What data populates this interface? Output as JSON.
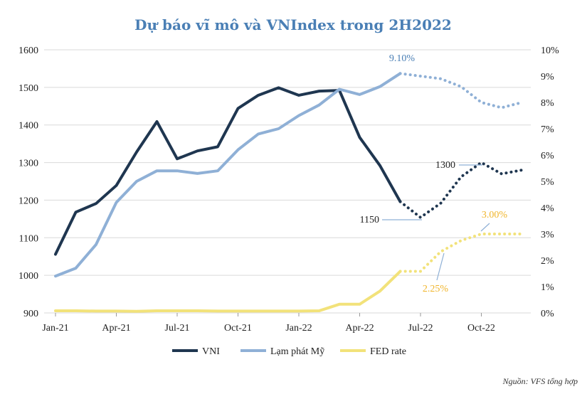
{
  "chart_data": {
    "type": "line",
    "title": "Dự báo vĩ mô và VNIndex trong 2H2022",
    "source": "Nguồn: VFS tổng hợp",
    "x_tick_labels": [
      "Jan-21",
      "Apr-21",
      "Jul-21",
      "Oct-21",
      "Jan-22",
      "Apr-22",
      "Jul-22",
      "Oct-22"
    ],
    "y_left": {
      "ticks": [
        900,
        1000,
        1100,
        1200,
        1300,
        1400,
        1500,
        1600
      ],
      "range": [
        900,
        1600
      ]
    },
    "y_right": {
      "ticks": [
        "0%",
        "1%",
        "2%",
        "3%",
        "4%",
        "5%",
        "6%",
        "7%",
        "8%",
        "9%",
        "10%"
      ],
      "range": [
        0,
        10
      ]
    },
    "grid": true,
    "legend_position": "bottom",
    "colors": {
      "vni": "#1f3650",
      "inflation": "#8fb0d6",
      "fed": "#f2e27a",
      "title": "#4a7fb5",
      "fed_label": "#f0b429",
      "grid": "#d9d9d9"
    },
    "series": [
      {
        "name": "VNI",
        "key": "vni",
        "axis": "left",
        "values": [
          1056,
          1168,
          1191,
          1239,
          1328,
          1409,
          1310,
          1331,
          1342,
          1444,
          1479,
          1499,
          1479,
          1490,
          1492,
          1367,
          1292,
          1196
        ],
        "forecast": [
          1196,
          1154,
          1192,
          1262,
          1300,
          1270,
          1280
        ]
      },
      {
        "name": "Lạm phát Mỹ",
        "key": "inflation",
        "axis": "right",
        "values": [
          1.4,
          1.7,
          2.6,
          4.2,
          5.0,
          5.4,
          5.4,
          5.3,
          5.4,
          6.2,
          6.8,
          7.0,
          7.5,
          7.9,
          8.5,
          8.3,
          8.6,
          9.1
        ],
        "forecast": [
          9.1,
          9.0,
          8.9,
          8.6,
          8.0,
          7.8,
          8.0
        ]
      },
      {
        "name": "FED rate",
        "key": "fed",
        "axis": "right",
        "values": [
          0.08,
          0.08,
          0.07,
          0.07,
          0.06,
          0.08,
          0.08,
          0.08,
          0.07,
          0.07,
          0.07,
          0.07,
          0.07,
          0.08,
          0.33,
          0.33,
          0.83,
          1.58
        ],
        "forecast": [
          1.58,
          1.58,
          2.33,
          2.75,
          3.0,
          3.0,
          3.0
        ]
      }
    ],
    "annotations": [
      {
        "text": "9.10%",
        "series": "inflation"
      },
      {
        "text": "1300",
        "series": "vni"
      },
      {
        "text": "1150",
        "series": "vni"
      },
      {
        "text": "3.00%",
        "series": "fed"
      },
      {
        "text": "2.25%",
        "series": "fed"
      }
    ]
  }
}
